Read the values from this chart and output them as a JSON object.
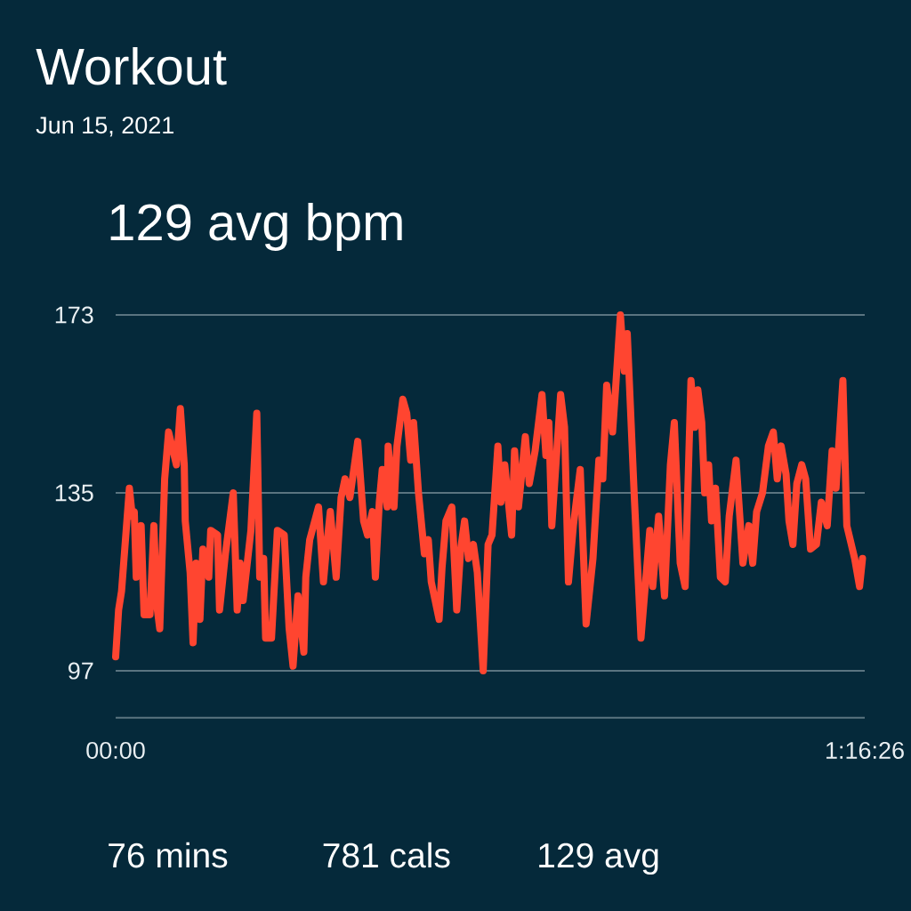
{
  "chart_data": {
    "type": "line",
    "title": "Workout",
    "subtitle": "Jun 15, 2021",
    "annotations": [
      "129 avg bpm",
      "76 mins",
      "781 cals",
      "129 avg"
    ],
    "x": [
      0,
      0.3,
      0.6,
      1.4,
      1.7,
      1.9,
      2.1,
      2.6,
      2.9,
      3.5,
      3.9,
      4.2,
      4.5,
      5.0,
      5.4,
      6.2,
      6.6,
      7.0,
      7.1,
      7.6,
      7.9,
      8.2,
      8.6,
      8.9,
      9.5,
      9.7,
      10.4,
      10.6,
      11.2,
      12.0,
      12.4,
      12.7,
      13.0,
      13.8,
      14.4,
      14.7,
      15.1,
      15.3,
      15.9,
      16.5,
      17.2,
      17.7,
      18.1,
      18.6,
      19.2,
      19.4,
      19.8,
      20.7,
      21.2,
      21.5,
      21.9,
      22.5,
      23.0,
      23.4,
      23.9,
      24.7,
      25.3,
      25.7,
      26.2,
      26.5,
      26.9,
      27.2,
      27.7,
      27.8,
      28.4,
      28.7,
      29.3,
      29.7,
      30.1,
      30.4,
      30.9,
      31.5,
      31.9,
      32.2,
      33.0,
      33.3,
      33.7,
      34.3,
      34.8,
      35.2,
      35.6,
      36.0,
      36.5,
      36.9,
      37.5,
      38.0,
      38.4,
      39.0,
      39.3,
      39.7,
      40.4,
      40.7,
      41.1,
      41.8,
      42.2,
      42.8,
      43.5,
      43.9,
      44.2,
      44.5,
      45.4,
      45.8,
      46.2,
      46.7,
      47.4,
      48.0,
      48.7,
      49.3,
      49.7,
      50.1,
      50.7,
      51.0,
      51.5,
      51.9,
      52.2,
      52.9,
      53.6,
      54.5,
      54.8,
      55.4,
      56.0,
      56.6,
      57.0,
      57.6,
      58.1,
      58.7,
      59.1,
      59.4,
      59.8,
      60.1,
      60.5,
      60.8,
      61.2,
      61.7,
      62.2,
      62.6,
      63.3,
      64.0,
      64.6,
      65.0,
      65.4,
      66.0,
      66.6,
      67.1,
      67.5,
      67.9,
      68.4,
      68.7,
      69.1,
      69.5,
      70.0,
      70.4,
      70.9,
      71.5,
      72.0,
      72.6,
      73.1,
      73.5,
      74.2,
      74.6,
      75.4,
      75.9,
      76.2
    ],
    "values": [
      100,
      110,
      114,
      136,
      130,
      131,
      117,
      128,
      109,
      109,
      128,
      111,
      106,
      138,
      148,
      141,
      153,
      141,
      129,
      118,
      103,
      120,
      108,
      123,
      117,
      127,
      126,
      110,
      122,
      135,
      110,
      120,
      112,
      127,
      152,
      117,
      121,
      104,
      104,
      127,
      126,
      106,
      98,
      113,
      101,
      117,
      125,
      132,
      116,
      123,
      131,
      117,
      134,
      138,
      134,
      146,
      129,
      126,
      131,
      117,
      133,
      140,
      132,
      145,
      132,
      145,
      155,
      152,
      142,
      150,
      135,
      122,
      125,
      116,
      108,
      119,
      129,
      132,
      110,
      123,
      129,
      121,
      124,
      118,
      97,
      124,
      126,
      145,
      133,
      141,
      126,
      144,
      132,
      147,
      137,
      144,
      156,
      143,
      150,
      128,
      156,
      149,
      116,
      128,
      140,
      107,
      121,
      142,
      138,
      158,
      148,
      157,
      173,
      161,
      169,
      135,
      104,
      127,
      115,
      130,
      113,
      141,
      150,
      120,
      115,
      159,
      149,
      157,
      150,
      135,
      141,
      129,
      136,
      117,
      116,
      130,
      142,
      120,
      128,
      120,
      131,
      135,
      145,
      148,
      138,
      145,
      139,
      129,
      124,
      137,
      141,
      138,
      123,
      124,
      133,
      128,
      144,
      136,
      159,
      128,
      121,
      115,
      121
    ],
    "color": "#ff4530",
    "line_style": "solid",
    "xlim": [
      0,
      76.43
    ],
    "ylim": [
      87,
      173
    ],
    "xticks": [
      {
        "value": 0,
        "label": "00:00"
      },
      {
        "value": 76.43,
        "label": "1:16:26"
      }
    ],
    "yticks": [
      97,
      135,
      173
    ],
    "grid": "y"
  }
}
